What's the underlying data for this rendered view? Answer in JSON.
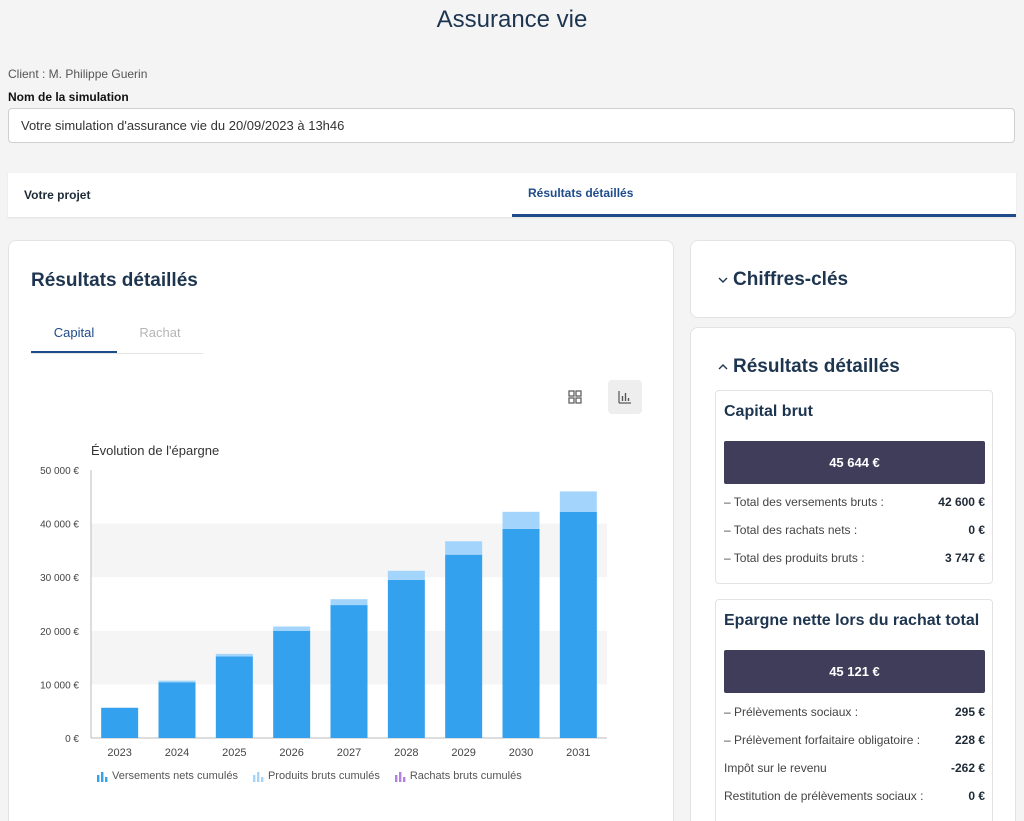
{
  "header": {
    "title": "Assurance vie",
    "client": "Client : M. Philippe Guerin",
    "simulation_label": "Nom de la simulation",
    "simulation_value": "Votre simulation d'assurance vie du 20/09/2023 à 13h46"
  },
  "tabs": [
    {
      "label": "Votre projet"
    },
    {
      "label": "Résultats détaillés"
    }
  ],
  "left_panel": {
    "title": "Résultats détaillés",
    "sub_tabs": [
      {
        "label": "Capital"
      },
      {
        "label": "Rachat"
      }
    ]
  },
  "chart_data": {
    "type": "bar",
    "title": "Évolution de l'épargne",
    "categories": [
      "2023",
      "2024",
      "2025",
      "2026",
      "2027",
      "2028",
      "2029",
      "2030",
      "2031"
    ],
    "series": [
      {
        "name": "Versements nets cumulés",
        "color": "#33a1ee",
        "values": [
          5600,
          10400,
          15200,
          20000,
          24800,
          29500,
          34200,
          39000,
          42200
        ]
      },
      {
        "name": "Produits bruts cumulés",
        "color": "#a3d4fb",
        "values": [
          100,
          300,
          500,
          800,
          1100,
          1700,
          2500,
          3200,
          3800
        ]
      },
      {
        "name": "Rachats bruts cumulés",
        "color": "#b57fe6",
        "values": [
          0,
          0,
          0,
          0,
          0,
          0,
          0,
          0,
          0
        ]
      }
    ],
    "yticks": [
      "0 €",
      "10 000 €",
      "20 000 €",
      "30 000 €",
      "40 000 €",
      "50 000 €"
    ],
    "ylim": [
      0,
      50000
    ],
    "stacked": true,
    "legend": "bottom"
  },
  "right_panel": {
    "key_figures_title": "Chiffres-clés",
    "detailed_title": "Résultats détaillés",
    "capital_brut": {
      "title": "Capital brut",
      "total": "45 644 €",
      "rows": [
        {
          "label": "– Total des versements bruts :",
          "value": "42 600 €"
        },
        {
          "label": "– Total des rachats nets :",
          "value": "0 €"
        },
        {
          "label": "– Total des produits bruts :",
          "value": "3 747 €"
        }
      ]
    },
    "epargne_nette": {
      "title": "Epargne nette lors du rachat total",
      "total": "45 121 €",
      "rows": [
        {
          "label": "– Prélèvements sociaux :",
          "value": "295 €"
        },
        {
          "label": "– Prélèvement forfaitaire obligatoire :",
          "value": "228 €"
        },
        {
          "label": "Impôt sur le revenu",
          "value": "-262 €"
        },
        {
          "label": "Restitution de prélèvements sociaux :",
          "value": "0 €"
        }
      ]
    }
  }
}
